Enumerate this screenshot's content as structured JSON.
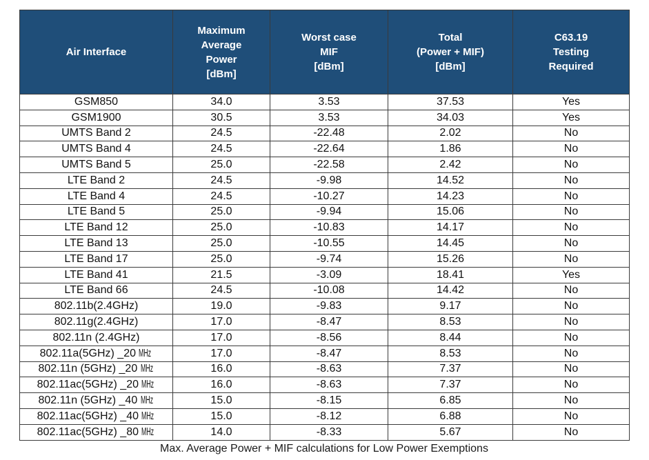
{
  "colors": {
    "header_bg": "#1F4E79",
    "header_text": "#FFFFFF",
    "border": "#3A3A3A",
    "row_bg": "#FFFFFF",
    "body_text": "#111111"
  },
  "table": {
    "columns": [
      {
        "key": "air_interface",
        "label": "Air Interface"
      },
      {
        "key": "max_avg_power",
        "label": "Maximum\nAverage\nPower\n[dBm]"
      },
      {
        "key": "worst_case_mif",
        "label": "Worst case\nMIF\n[dBm]"
      },
      {
        "key": "total",
        "label": "Total\n(Power + MIF)\n[dBm]"
      },
      {
        "key": "testing_required",
        "label": "C63.19\nTesting\nRequired"
      }
    ],
    "rows": [
      [
        "GSM850",
        "34.0",
        "3.53",
        "37.53",
        "Yes"
      ],
      [
        "GSM1900",
        "30.5",
        "3.53",
        "34.03",
        "Yes"
      ],
      [
        "UMTS Band 2",
        "24.5",
        "-22.48",
        "2.02",
        "No"
      ],
      [
        "UMTS Band 4",
        "24.5",
        "-22.64",
        "1.86",
        "No"
      ],
      [
        "UMTS Band 5",
        "25.0",
        "-22.58",
        "2.42",
        "No"
      ],
      [
        "LTE Band 2",
        "24.5",
        "-9.98",
        "14.52",
        "No"
      ],
      [
        "LTE Band 4",
        "24.5",
        "-10.27",
        "14.23",
        "No"
      ],
      [
        "LTE Band 5",
        "25.0",
        "-9.94",
        "15.06",
        "No"
      ],
      [
        "LTE Band 12",
        "25.0",
        "-10.83",
        "14.17",
        "No"
      ],
      [
        "LTE Band 13",
        "25.0",
        "-10.55",
        "14.45",
        "No"
      ],
      [
        "LTE Band 17",
        "25.0",
        "-9.74",
        "15.26",
        "No"
      ],
      [
        "LTE Band 41",
        "21.5",
        "-3.09",
        "18.41",
        "Yes"
      ],
      [
        "LTE Band 66",
        "24.5",
        "-10.08",
        "14.42",
        "No"
      ],
      [
        "802.11b(2.4GHz)",
        "19.0",
        "-9.83",
        "9.17",
        "No"
      ],
      [
        "802.11g(2.4GHz)",
        "17.0",
        "-8.47",
        "8.53",
        "No"
      ],
      [
        "802.11n (2.4GHz)",
        "17.0",
        "-8.56",
        "8.44",
        "No"
      ],
      [
        "802.11a(5GHz) _20 MHz",
        "17.0",
        "-8.47",
        "8.53",
        "No"
      ],
      [
        "802.11n (5GHz) _20 MHz",
        "16.0",
        "-8.63",
        "7.37",
        "No"
      ],
      [
        "802.11ac(5GHz) _20 MHz",
        "16.0",
        "-8.63",
        "7.37",
        "No"
      ],
      [
        "802.11n (5GHz) _40 MHz",
        "15.0",
        "-8.15",
        "6.85",
        "No"
      ],
      [
        "802.11ac(5GHz) _40 MHz",
        "15.0",
        "-8.12",
        "6.88",
        "No"
      ],
      [
        "802.11ac(5GHz) _80 MHz",
        "14.0",
        "-8.33",
        "5.67",
        "No"
      ]
    ]
  },
  "caption": "Max. Average Power + MIF calculations for Low Power Exemptions"
}
